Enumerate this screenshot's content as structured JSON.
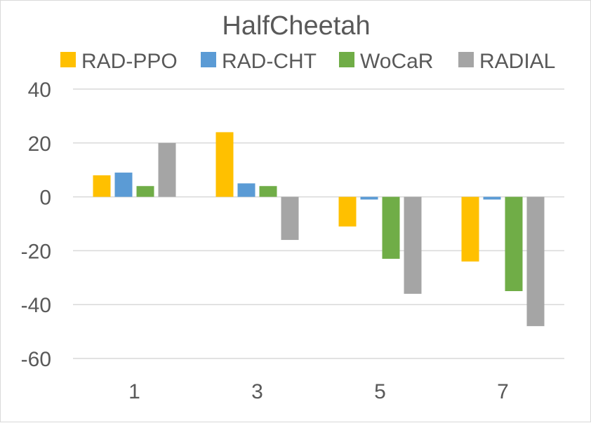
{
  "chart_data": {
    "type": "bar",
    "title": "HalfCheetah",
    "xlabel": "",
    "ylabel": "",
    "categories": [
      "1",
      "3",
      "5",
      "7"
    ],
    "ylim": [
      -60,
      40
    ],
    "yticks": [
      "40",
      "20",
      "0",
      "-20",
      "-40",
      "-60"
    ],
    "grid": true,
    "legend_position": "top",
    "series": [
      {
        "name": "RAD-PPO",
        "color": "#FFC000",
        "values": [
          8,
          24,
          -11,
          -24
        ]
      },
      {
        "name": "RAD-CHT",
        "color": "#5B9BD5",
        "values": [
          9,
          5,
          -1,
          -1
        ]
      },
      {
        "name": "WoCaR",
        "color": "#70AD47",
        "values": [
          4,
          4,
          -23,
          -35
        ]
      },
      {
        "name": "RADIAL",
        "color": "#A5A5A5",
        "values": [
          20,
          -16,
          -36,
          -48
        ]
      }
    ]
  }
}
